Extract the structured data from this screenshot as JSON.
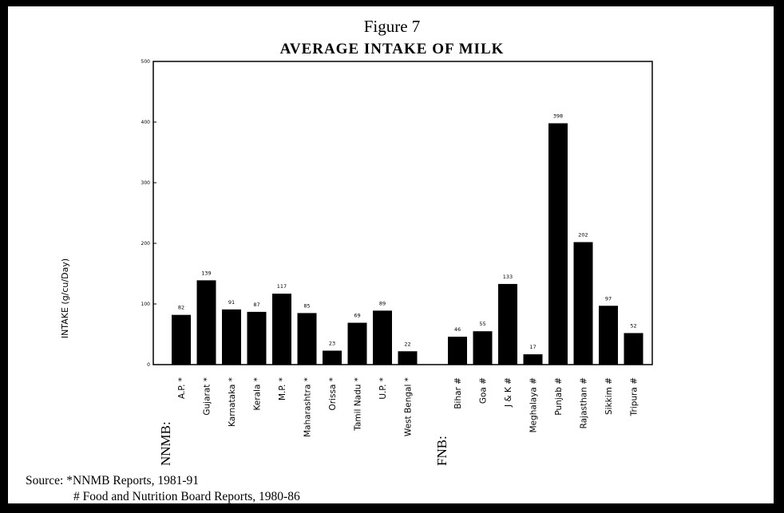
{
  "chart_data": {
    "type": "bar",
    "title": "Figure 7",
    "subtitle": "AVERAGE INTAKE OF MILK",
    "ylabel": "INTAKE (g/cu/Day)",
    "ylim": [
      0,
      500
    ],
    "yticks": [
      "0",
      "100",
      "200",
      "300",
      "400",
      "500"
    ],
    "groups": [
      {
        "label": "NNMB:",
        "categories": [
          "A.P. *",
          "Gujarat *",
          "Karnataka *",
          "Kerala *",
          "M.P. *",
          "Maharashtra *",
          "Orissa *",
          "Tamil Nadu *",
          "U.P. *",
          "West Bengal *"
        ],
        "values": [
          82,
          139,
          91,
          87,
          117,
          85,
          23,
          69,
          89,
          22
        ],
        "labels": [
          "82",
          "139",
          "91",
          "87",
          "117",
          "85",
          "23",
          "69",
          "89",
          "22"
        ]
      },
      {
        "label": "FNB:",
        "categories": [
          "Bihar #",
          "Goa #",
          "J & K #",
          "Meghalaya #",
          "Punjab #",
          "Rajasthan #",
          "Sikkim #",
          "Tripura #"
        ],
        "values": [
          46,
          55,
          133,
          17,
          398,
          202,
          97,
          52
        ],
        "labels": [
          "46",
          "55",
          "133",
          "17",
          "398",
          "202",
          "97",
          "52"
        ]
      }
    ],
    "grid": false,
    "legend": "none"
  },
  "source": {
    "line1": "Source:  *NNMB Reports, 1981-91",
    "line2": "# Food and Nutrition Board Reports, 1980-86"
  },
  "colors": {
    "bar": "#000000",
    "background": "#ffffff",
    "border": "#000000"
  }
}
